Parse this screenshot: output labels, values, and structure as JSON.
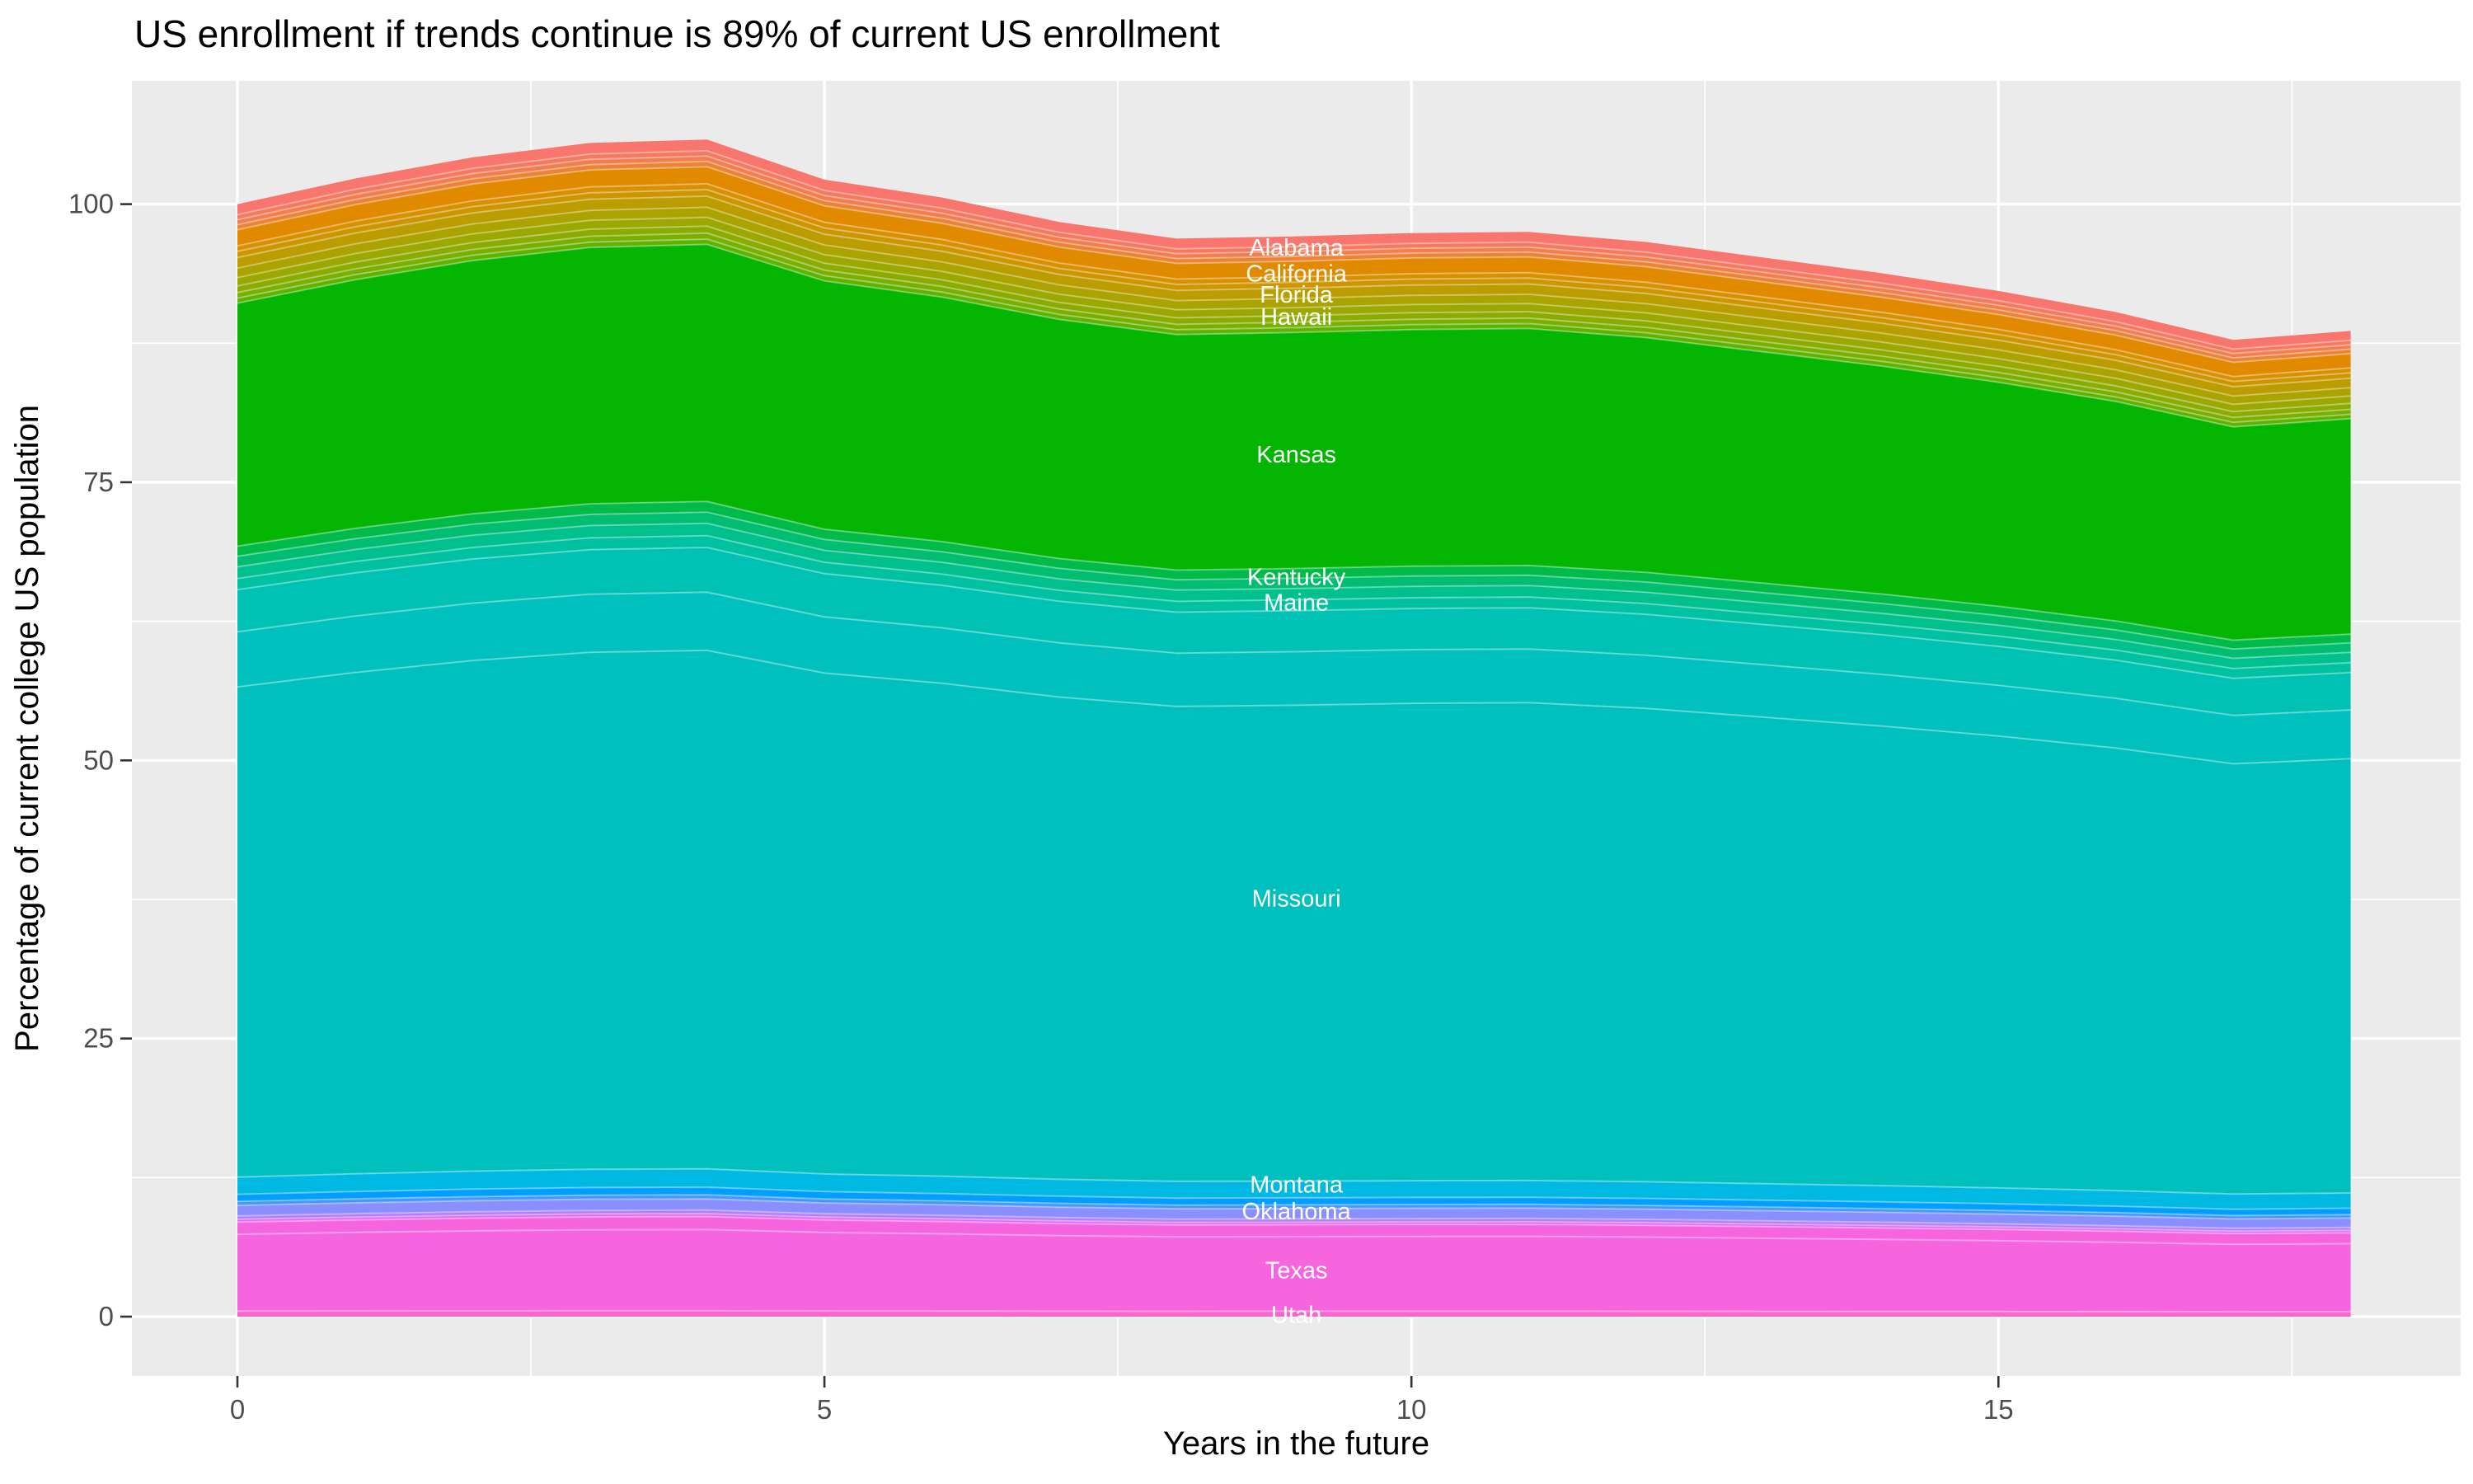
{
  "chart_data": {
    "type": "area",
    "stacked": true,
    "title": "US enrollment if trends continue is 89% of current US enrollment",
    "xlabel": "Years in the future",
    "ylabel": "Percentage of current college US population",
    "x": [
      0,
      1,
      2,
      3,
      4,
      5,
      6,
      7,
      8,
      9,
      10,
      11,
      12,
      13,
      14,
      15,
      16,
      17,
      18
    ],
    "total_pct": [
      100.0,
      102.3,
      104.2,
      105.5,
      105.8,
      102.2,
      100.6,
      98.4,
      96.9,
      97.1,
      97.4,
      97.5,
      96.6,
      95.2,
      93.8,
      92.2,
      90.3,
      87.8,
      88.6
    ],
    "final_pct_of_current": 89,
    "x_ticks": [
      0,
      5,
      10,
      15
    ],
    "x_minor_ticks": [
      2.5,
      7.5,
      12.5,
      17.5
    ],
    "y_ticks": [
      0,
      25,
      50,
      75,
      100
    ],
    "y_minor_ticks": [
      12.5,
      37.5,
      62.5,
      87.5
    ],
    "xlim": [
      -0.9,
      18.94
    ],
    "ylim": [
      -5.3,
      111.1
    ],
    "grid": true,
    "legend": "none",
    "panel_bg": "#EBEBEB",
    "grid_color": "#FFFFFF",
    "tick_color": "#333333",
    "tick_label_color": "#4D4D4D",
    "axis_title_color": "#000000",
    "state_label_color": "#FFFFFF",
    "bands": [
      {
        "label": "Alabama",
        "color": "#F8766D",
        "top": 1.0,
        "bottom": 0.9905
      },
      {
        "label": "",
        "color": "#F5795F",
        "top": 0.9905,
        "bottom": 0.986
      },
      {
        "label": "",
        "color": "#F07E4E",
        "top": 0.986,
        "bottom": 0.9815
      },
      {
        "label": "",
        "color": "#EA8336",
        "top": 0.9815,
        "bottom": 0.977
      },
      {
        "label": "California",
        "color": "#E18A00",
        "top": 0.977,
        "bottom": 0.9625
      },
      {
        "label": "",
        "color": "#D79000",
        "top": 0.9625,
        "bottom": 0.9575
      },
      {
        "label": "",
        "color": "#CD9600",
        "top": 0.9575,
        "bottom": 0.952
      },
      {
        "label": "Florida",
        "color": "#BC9D00",
        "top": 0.952,
        "bottom": 0.9425
      },
      {
        "label": "",
        "color": "#ABA300",
        "top": 0.9425,
        "bottom": 0.934
      },
      {
        "label": "Hawaii",
        "color": "#9AA800",
        "top": 0.934,
        "bottom": 0.9265
      },
      {
        "label": "",
        "color": "#8AAC00",
        "top": 0.9265,
        "bottom": 0.9205
      },
      {
        "label": "",
        "color": "#79AF00",
        "top": 0.9205,
        "bottom": 0.9155
      },
      {
        "label": "",
        "color": "#5CB300",
        "top": 0.9155,
        "bottom": 0.911
      },
      {
        "label": "Kansas",
        "color": "#04B501",
        "top": 0.911,
        "bottom": 0.6925
      },
      {
        "label": "",
        "color": "#00BA49",
        "top": 0.6925,
        "bottom": 0.6835
      },
      {
        "label": "Kentucky",
        "color": "#00BD71",
        "top": 0.6835,
        "bottom": 0.674
      },
      {
        "label": "",
        "color": "#00C08E",
        "top": 0.674,
        "bottom": 0.6635
      },
      {
        "label": "Maine",
        "color": "#00C1A2",
        "top": 0.6635,
        "bottom": 0.6535
      },
      {
        "label": "",
        "color": "#00C2B4",
        "top": 0.6535,
        "bottom": 0.6155
      },
      {
        "label": "",
        "color": "#00C1BE",
        "top": 0.6155,
        "bottom": 0.566
      },
      {
        "label": "Missouri",
        "color": "#00C0BE",
        "top": 0.566,
        "bottom": 0.1255
      },
      {
        "label": "Montana",
        "color": "#00B9E3",
        "top": 0.1255,
        "bottom": 0.11
      },
      {
        "label": "",
        "color": "#009FFF",
        "top": 0.11,
        "bottom": 0.1035
      },
      {
        "label": "",
        "color": "#4497FF",
        "top": 0.1035,
        "bottom": 0.1
      },
      {
        "label": "Oklahoma",
        "color": "#8A8FFF",
        "top": 0.1,
        "bottom": 0.0905
      },
      {
        "label": "",
        "color": "#B57BFF",
        "top": 0.0905,
        "bottom": 0.0875
      },
      {
        "label": "",
        "color": "#E16AF1",
        "top": 0.0875,
        "bottom": 0.085
      },
      {
        "label": "Texas",
        "color": "#F765DE",
        "top": 0.085,
        "bottom": 0.074
      },
      {
        "label": "",
        "color": "#F765DE",
        "top": 0.074,
        "bottom": 0.005
      },
      {
        "label": "Utah",
        "color": "#FF62C9",
        "top": 0.005,
        "bottom": 0.0
      }
    ],
    "labels": [
      {
        "text": "Alabama",
        "x": 9.02,
        "y": 96.1
      },
      {
        "text": "California",
        "x": 9.02,
        "y": 93.8
      },
      {
        "text": "Florida",
        "x": 9.02,
        "y": 91.9
      },
      {
        "text": "Hawaii",
        "x": 9.02,
        "y": 89.9
      },
      {
        "text": "Kansas",
        "x": 9.02,
        "y": 77.5
      },
      {
        "text": "Kentucky",
        "x": 9.02,
        "y": 66.5
      },
      {
        "text": "Maine",
        "x": 9.02,
        "y": 64.2
      },
      {
        "text": "Missouri",
        "x": 9.02,
        "y": 37.6
      },
      {
        "text": "Montana",
        "x": 9.02,
        "y": 11.9
      },
      {
        "text": "Oklahoma",
        "x": 9.02,
        "y": 9.5
      },
      {
        "text": "Texas",
        "x": 9.02,
        "y": 4.2
      },
      {
        "text": "Utah",
        "x": 9.02,
        "y": 0.2
      }
    ]
  }
}
